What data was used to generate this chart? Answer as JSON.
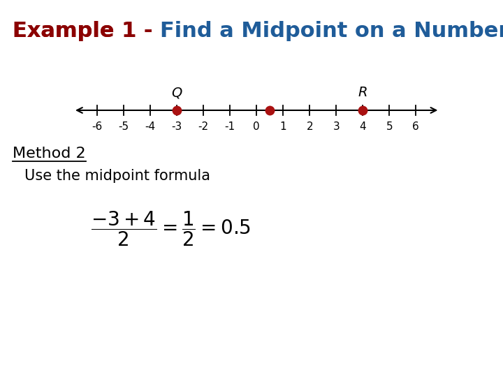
{
  "title_part1": "Example 1 - ",
  "title_part2": "Find a Midpoint on a Number Line",
  "title_color1": "#8B0000",
  "title_color2": "#1F5C99",
  "title_fontsize": 22,
  "number_line_range": [
    -6,
    6
  ],
  "point_Q": -3,
  "point_R": 4,
  "midpoint": 0.5,
  "label_Q": "Q",
  "label_R": "R",
  "dot_color": "#AA1111",
  "method_label": "Method 2",
  "method_text": "Use the midpoint formula",
  "bg_color": "#FFFFFF",
  "text_color": "#000000"
}
